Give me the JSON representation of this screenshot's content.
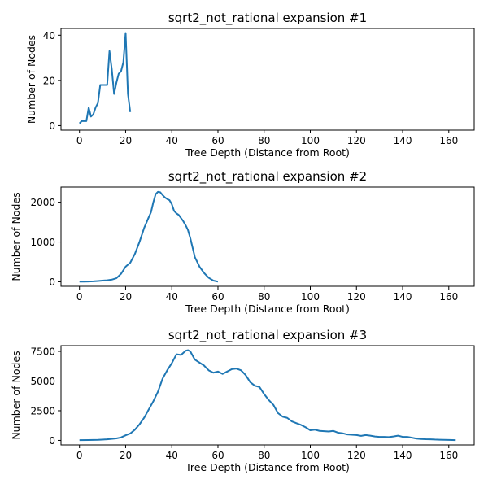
{
  "chart_data": [
    {
      "type": "line",
      "title": "sqrt2_not_rational expansion #1",
      "xlabel": "Tree Depth (Distance from Root)",
      "ylabel": "Number of Nodes",
      "xlim": [
        -8,
        171
      ],
      "ylim": [
        -2,
        43
      ],
      "xticks": [
        0,
        20,
        40,
        60,
        80,
        100,
        120,
        140,
        160
      ],
      "yticks": [
        0,
        20,
        40
      ],
      "grid": false,
      "series": [
        {
          "color": "#1f77b4",
          "x": [
            0,
            1,
            2,
            3,
            4,
            5,
            6,
            7,
            8,
            9,
            10,
            11,
            12,
            13,
            14,
            15,
            16,
            17,
            18,
            19,
            20,
            21,
            22
          ],
          "y": [
            1,
            2,
            2,
            2,
            8,
            4,
            5,
            8,
            10,
            18,
            18,
            18,
            18,
            33,
            25,
            14,
            19,
            23,
            24,
            28,
            41,
            14,
            6
          ]
        }
      ]
    },
    {
      "type": "line",
      "title": "sqrt2_not_rational expansion #2",
      "xlabel": "Tree Depth (Distance from Root)",
      "ylabel": "Number of Nodes",
      "xlim": [
        -8,
        171
      ],
      "ylim": [
        -113,
        2380
      ],
      "xticks": [
        0,
        20,
        40,
        60,
        80,
        100,
        120,
        140,
        160
      ],
      "yticks": [
        0,
        1000,
        2000
      ],
      "grid": false,
      "series": [
        {
          "color": "#1f77b4",
          "x": [
            0,
            2,
            4,
            6,
            8,
            10,
            12,
            14,
            16,
            18,
            20,
            22,
            24,
            26,
            28,
            30,
            31,
            32,
            33,
            34,
            35,
            36,
            37,
            38,
            39,
            40,
            41,
            42,
            43,
            44,
            45,
            46,
            47,
            48,
            50,
            52,
            54,
            56,
            58,
            60
          ],
          "y": [
            5,
            5,
            8,
            12,
            20,
            30,
            38,
            55,
            90,
            200,
            380,
            480,
            700,
            1000,
            1350,
            1620,
            1750,
            2000,
            2200,
            2260,
            2250,
            2180,
            2120,
            2080,
            2050,
            1950,
            1780,
            1720,
            1680,
            1600,
            1520,
            1420,
            1300,
            1100,
            620,
            380,
            220,
            100,
            30,
            5
          ]
        }
      ]
    },
    {
      "type": "line",
      "title": "sqrt2_not_rational expansion #3",
      "xlabel": "Tree Depth (Distance from Root)",
      "ylabel": "Number of Nodes",
      "xlim": [
        -8,
        171
      ],
      "ylim": [
        -380,
        7980
      ],
      "xticks": [
        0,
        20,
        40,
        60,
        80,
        100,
        120,
        140,
        160
      ],
      "yticks": [
        0,
        2500,
        5000,
        7500
      ],
      "grid": false,
      "series": [
        {
          "color": "#1f77b4",
          "x": [
            0,
            4,
            8,
            12,
            16,
            18,
            20,
            22,
            24,
            26,
            28,
            30,
            32,
            34,
            36,
            38,
            40,
            42,
            44,
            46,
            47,
            48,
            50,
            52,
            54,
            56,
            58,
            60,
            62,
            64,
            66,
            68,
            70,
            72,
            74,
            76,
            78,
            80,
            82,
            84,
            86,
            88,
            90,
            92,
            94,
            96,
            98,
            100,
            102,
            104,
            106,
            108,
            110,
            112,
            114,
            116,
            118,
            120,
            122,
            124,
            126,
            128,
            130,
            132,
            134,
            136,
            138,
            140,
            142,
            144,
            146,
            148,
            150,
            152,
            154,
            156,
            158,
            160,
            163
          ],
          "y": [
            20,
            30,
            50,
            90,
            170,
            250,
            430,
            580,
            900,
            1350,
            1900,
            2600,
            3300,
            4100,
            5200,
            5900,
            6500,
            7250,
            7200,
            7550,
            7600,
            7500,
            6800,
            6550,
            6300,
            5900,
            5700,
            5800,
            5600,
            5800,
            6000,
            6050,
            5900,
            5500,
            4900,
            4600,
            4500,
            3900,
            3400,
            3000,
            2300,
            2000,
            1900,
            1600,
            1450,
            1300,
            1100,
            850,
            900,
            800,
            780,
            750,
            800,
            650,
            600,
            500,
            480,
            450,
            380,
            450,
            400,
            330,
            300,
            300,
            280,
            330,
            400,
            300,
            300,
            230,
            150,
            120,
            100,
            90,
            70,
            60,
            50,
            40,
            20
          ]
        }
      ]
    }
  ]
}
